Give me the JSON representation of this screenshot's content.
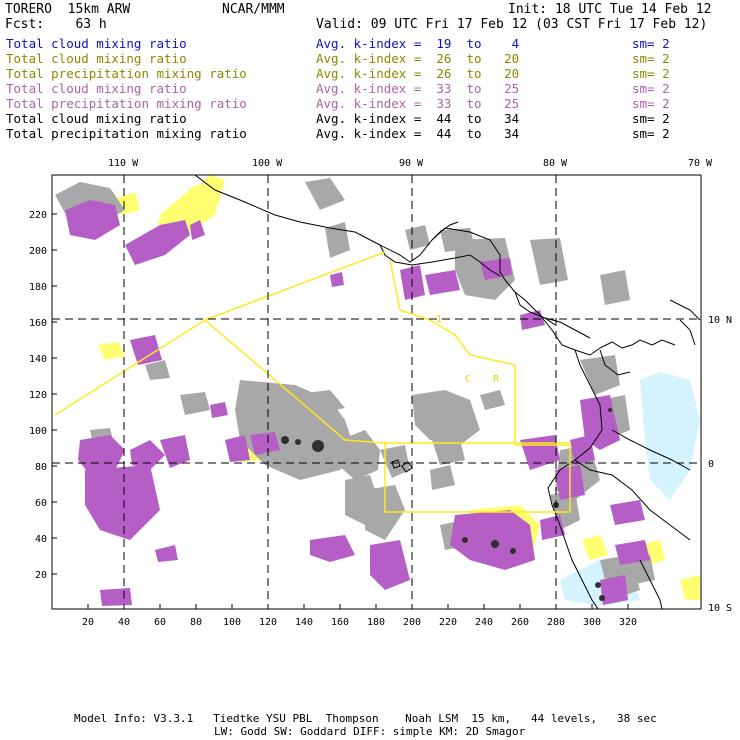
{
  "header": {
    "model": "TORERO  15km ARW",
    "org": "NCAR/MMM",
    "init": "Init: 18 UTC Tue 14 Feb 12",
    "fcst": "Fcst:    63 h",
    "valid": "Valid: 09 UTC Fri 17 Feb 12 (03 CST Fri 17 Feb 12)"
  },
  "legend": [
    {
      "field": "Total cloud mixing ratio",
      "index": "Avg. k-index =  19  to    4",
      "sm": "sm= 2",
      "color": "#1010c0"
    },
    {
      "field": "Total cloud mixing ratio",
      "index": "Avg. k-index =  26  to   20",
      "sm": "sm= 2",
      "color": "#8a8a00"
    },
    {
      "field": "Total precipitation mixing ratio",
      "index": "Avg. k-index =  26  to   20",
      "sm": "sm= 2",
      "color": "#8a8a00"
    },
    {
      "field": "Total cloud mixing ratio",
      "index": "Avg. k-index =  33  to   25",
      "sm": "sm= 2",
      "color": "#b060b0"
    },
    {
      "field": "Total precipitation mixing ratio",
      "index": "Avg. k-index =  33  to   25",
      "sm": "sm= 2",
      "color": "#b060b0"
    },
    {
      "field": "Total cloud mixing ratio",
      "index": "Avg. k-index =  44  to   34",
      "sm": "sm= 2",
      "color": "#000000"
    },
    {
      "field": "Total precipitation mixing ratio",
      "index": "Avg. k-index =  44  to   34",
      "sm": "sm= 2",
      "color": "#000000"
    }
  ],
  "map": {
    "lon_labels": [
      "110 W",
      "100 W",
      "90 W",
      "80 W",
      "70 W"
    ],
    "lat_labels": [
      "10 N",
      "0",
      "10 S"
    ],
    "x_ticks": [
      "20",
      "40",
      "60",
      "80",
      "100",
      "120",
      "140",
      "160",
      "180",
      "200",
      "220",
      "240",
      "260",
      "280",
      "300",
      "320"
    ],
    "y_ticks": [
      "20",
      "40",
      "60",
      "80",
      "100",
      "120",
      "140",
      "160",
      "180",
      "200",
      "220"
    ],
    "region_labels": [
      "1",
      "C",
      "R"
    ],
    "colors": {
      "gray": "#a0a0a0",
      "purple": "#b060c0",
      "yellow": "#ffff70",
      "cyan": "#d0f4ff",
      "dark": "#303030",
      "box": "#ffee22"
    }
  },
  "footer": {
    "line1": "Model Info: V3.3.1   Tiedtke YSU PBL  Thompson    Noah LSM  15 km,   44 levels,   38 sec",
    "line2": "LW: Godd SW: Goddard DIFF: simple KM: 2D Smagor"
  }
}
